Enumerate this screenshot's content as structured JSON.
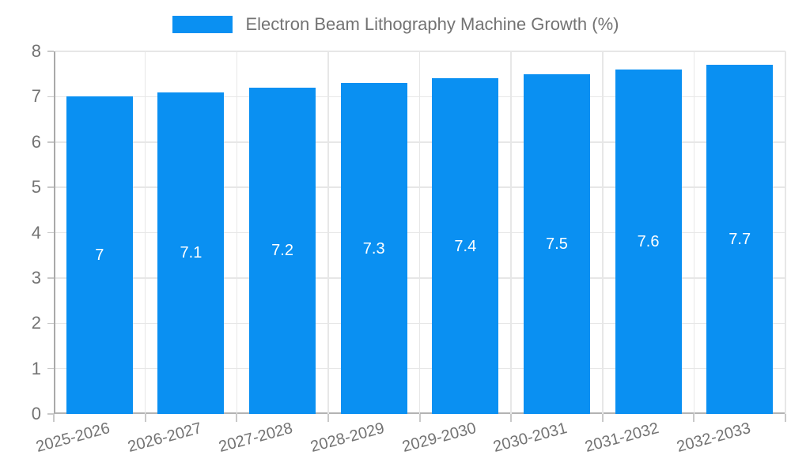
{
  "legend": {
    "label": "Electron Beam Lithography Machine Growth (%)"
  },
  "colors": {
    "bar": "#0a90f2",
    "grid": "#e7e7e7",
    "axis": "#a9a9a9",
    "bottom_axis": "#b3b3b3",
    "tick": "#c9c9c9",
    "text": "#737373",
    "value_label": "#ffffff",
    "background": "#ffffff"
  },
  "chart_data": {
    "type": "bar",
    "title": "Electron Beam Lithography Machine Growth (%)",
    "series_name": "Electron Beam Lithography Machine Growth (%)",
    "categories": [
      "2025-2026",
      "2026-2027",
      "2027-2028",
      "2028-2029",
      "2029-2030",
      "2030-2031",
      "2031-2032",
      "2032-2033"
    ],
    "values": [
      7,
      7.1,
      7.2,
      7.3,
      7.4,
      7.5,
      7.6,
      7.7
    ],
    "value_labels": [
      "7",
      "7.1",
      "7.2",
      "7.3",
      "7.4",
      "7.5",
      "7.6",
      "7.7"
    ],
    "xlabel": "",
    "ylabel": "",
    "ylim": [
      0,
      8
    ],
    "yticks": [
      0,
      1,
      2,
      3,
      4,
      5,
      6,
      7,
      8
    ],
    "ytick_labels": [
      "0",
      "1",
      "2",
      "3",
      "4",
      "5",
      "6",
      "7",
      "8"
    ],
    "grid": true,
    "legend_position": "top",
    "value_labels_inside_bars": true,
    "xlabel_rotation_deg": -15
  }
}
